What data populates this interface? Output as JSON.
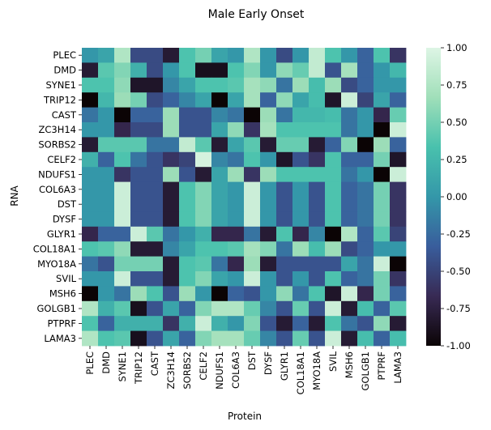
{
  "chart_data": {
    "type": "heatmap",
    "title": "Male Early Onset",
    "xlabel": "Protein",
    "ylabel": "RNA",
    "x_categories": [
      "PLEC",
      "DMD",
      "SYNE1",
      "TRIP12",
      "CAST",
      "ZC3H14",
      "SORBS2",
      "CELF2",
      "NDUFS1",
      "COL6A3",
      "DST",
      "DYSF",
      "GLYR1",
      "COL18A1",
      "MYO18A",
      "SVIL",
      "MSH6",
      "GOLGB1",
      "PTPRF",
      "LAMA3"
    ],
    "y_categories": [
      "PLEC",
      "DMD",
      "SYNE1",
      "TRIP12",
      "CAST",
      "ZC3H14",
      "SORBS2",
      "CELF2",
      "NDUFS1",
      "COL6A3",
      "DST",
      "DYSF",
      "GLYR1",
      "COL18A1",
      "MYO18A",
      "SVIL",
      "MSH6",
      "GOLGB1",
      "PTPRF",
      "LAMA3"
    ],
    "values": [
      [
        0.0,
        0.1,
        0.75,
        -0.45,
        -0.45,
        -0.8,
        0.35,
        0.5,
        0.1,
        0.0,
        0.75,
        0.0,
        -0.45,
        0.0,
        0.85,
        0.35,
        0.0,
        -0.3,
        0.35,
        -0.6
      ],
      [
        -0.8,
        0.4,
        0.55,
        0.2,
        -0.45,
        0.0,
        0.35,
        -0.9,
        -0.9,
        0.35,
        0.55,
        0.0,
        0.6,
        0.45,
        0.85,
        -0.4,
        0.7,
        -0.3,
        0.0,
        0.25
      ],
      [
        0.35,
        0.35,
        0.6,
        -0.85,
        -0.85,
        -0.1,
        0.1,
        0.35,
        0.35,
        0.4,
        0.7,
        0.6,
        -0.2,
        0.65,
        0.3,
        0.65,
        -0.45,
        -0.3,
        0.0,
        0.0
      ],
      [
        -1.0,
        0.25,
        0.65,
        0.5,
        -0.45,
        -0.3,
        -0.1,
        0.1,
        -1.0,
        0.1,
        0.7,
        -0.3,
        0.6,
        0.1,
        0.3,
        -0.85,
        0.9,
        -0.5,
        0.1,
        -0.3
      ],
      [
        -0.2,
        0.0,
        -1.0,
        -0.3,
        -0.3,
        0.65,
        -0.4,
        -0.4,
        -0.1,
        -0.2,
        -1.0,
        0.65,
        -0.2,
        0.25,
        0.25,
        0.3,
        -0.2,
        0.0,
        -0.7,
        0.45
      ],
      [
        0.0,
        0.0,
        -0.7,
        -0.45,
        -0.45,
        0.65,
        -0.4,
        -0.4,
        0.1,
        0.6,
        -0.6,
        0.7,
        0.35,
        0.35,
        0.35,
        0.35,
        -0.2,
        0.0,
        -1.0,
        0.9
      ],
      [
        -0.8,
        0.4,
        0.4,
        0.4,
        -0.2,
        -0.2,
        0.85,
        0.4,
        -0.8,
        0.1,
        0.4,
        -0.8,
        0.45,
        0.45,
        -0.8,
        -0.3,
        0.55,
        -1.0,
        0.65,
        -0.3
      ],
      [
        0.2,
        -0.3,
        0.35,
        -0.2,
        -0.4,
        -0.6,
        -0.5,
        0.95,
        -0.1,
        -0.2,
        0.35,
        0.0,
        -0.85,
        -0.4,
        -0.6,
        0.35,
        -0.3,
        -0.3,
        0.5,
        -0.85
      ],
      [
        0.0,
        0.0,
        -0.6,
        -0.4,
        -0.4,
        0.65,
        -0.4,
        -0.8,
        0.1,
        0.65,
        -0.6,
        0.65,
        0.35,
        0.35,
        0.35,
        0.35,
        -0.2,
        0.0,
        -1.0,
        0.9
      ],
      [
        0.0,
        0.0,
        0.9,
        -0.4,
        -0.4,
        -0.8,
        0.35,
        0.55,
        0.1,
        0.0,
        0.9,
        0.0,
        -0.4,
        0.0,
        -0.4,
        0.35,
        -0.3,
        -0.2,
        0.5,
        -0.6
      ],
      [
        0.0,
        0.0,
        0.9,
        -0.4,
        -0.4,
        -0.8,
        0.35,
        0.55,
        0.1,
        0.0,
        0.9,
        0.0,
        -0.4,
        0.0,
        -0.4,
        0.35,
        -0.3,
        -0.2,
        0.5,
        -0.6
      ],
      [
        0.0,
        0.0,
        0.9,
        -0.4,
        -0.4,
        -0.8,
        0.35,
        0.55,
        0.1,
        0.0,
        0.9,
        0.0,
        -0.4,
        0.0,
        -0.4,
        0.35,
        -0.3,
        -0.2,
        0.5,
        -0.6
      ],
      [
        -0.7,
        -0.3,
        -0.3,
        0.9,
        0.4,
        -0.2,
        0.0,
        0.2,
        -0.7,
        -0.7,
        -0.2,
        -0.8,
        0.35,
        -0.7,
        -0.1,
        -1.0,
        0.75,
        -0.3,
        0.4,
        -0.5
      ],
      [
        0.35,
        0.4,
        0.6,
        -0.8,
        -0.8,
        -0.1,
        0.1,
        0.35,
        0.35,
        0.4,
        0.7,
        0.55,
        -0.2,
        0.65,
        0.3,
        0.65,
        -0.45,
        -0.3,
        0.0,
        0.0
      ],
      [
        -0.2,
        -0.4,
        0.5,
        0.5,
        0.5,
        -0.8,
        0.35,
        0.4,
        -0.2,
        -0.7,
        0.65,
        -0.8,
        -0.4,
        -0.4,
        -0.4,
        -0.4,
        0.1,
        -0.2,
        0.9,
        -1.0
      ],
      [
        0.0,
        0.0,
        0.9,
        -0.4,
        -0.4,
        -0.8,
        0.35,
        0.55,
        0.1,
        0.0,
        0.9,
        0.0,
        -0.4,
        0.0,
        -0.4,
        0.35,
        -0.3,
        -0.2,
        0.5,
        -0.6
      ],
      [
        -1.0,
        0.0,
        -0.2,
        0.65,
        0.35,
        -0.4,
        0.65,
        0.0,
        -1.0,
        -0.3,
        -0.4,
        0.0,
        0.6,
        -0.2,
        0.35,
        -0.85,
        0.9,
        -0.7,
        0.5,
        -0.3
      ],
      [
        0.75,
        0.2,
        0.4,
        -0.9,
        -0.4,
        0.1,
        -0.3,
        0.55,
        0.75,
        0.75,
        0.45,
        -0.1,
        -0.4,
        0.45,
        -0.4,
        0.9,
        -0.8,
        0.3,
        -0.3,
        0.4
      ],
      [
        0.35,
        -0.3,
        0.2,
        0.2,
        0.2,
        -0.6,
        0.2,
        0.9,
        0.2,
        0.0,
        0.55,
        -0.4,
        -0.8,
        -0.3,
        -0.8,
        0.35,
        -0.2,
        -0.4,
        0.6,
        -0.8
      ],
      [
        0.75,
        0.35,
        0.4,
        -0.9,
        -0.4,
        0.1,
        -0.3,
        0.55,
        0.7,
        0.7,
        0.45,
        -0.1,
        -0.4,
        0.45,
        -0.4,
        0.9,
        -0.8,
        0.3,
        -0.3,
        0.3
      ]
    ],
    "vmin": -1.0,
    "vmax": 1.0,
    "colorbar_ticks": [
      "-1.00",
      "-0.75",
      "-0.50",
      "-0.25",
      "0.00",
      "0.25",
      "0.50",
      "0.75",
      "1.00"
    ],
    "colormap": "mako",
    "colormap_stops": [
      "#0b0405",
      "#382a54",
      "#395d9c",
      "#3497a9",
      "#49c1ad",
      "#a0dfb9",
      "#def5e5"
    ],
    "grid": false,
    "legend": "colorbar-right"
  }
}
